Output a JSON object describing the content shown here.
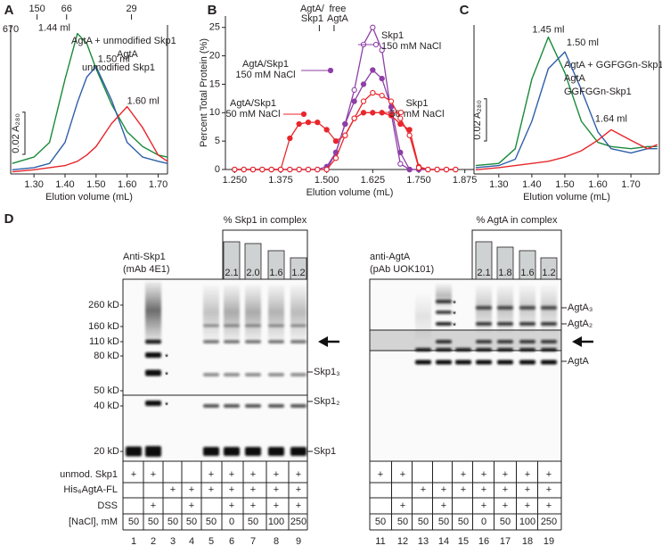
{
  "chart_data": [
    {
      "panel": "A",
      "type": "line",
      "xlabel": "Elution volume (mL)",
      "x": [
        1.23,
        1.3,
        1.35,
        1.4,
        1.44,
        1.47,
        1.5,
        1.55,
        1.6,
        1.65,
        1.7,
        1.73
      ],
      "series": [
        {
          "name": "AgtA + unmodified Skp1",
          "color": "#1a8a3a",
          "peak_label": "1.44 ml",
          "values": [
            0.005,
            0.008,
            0.015,
            0.045,
            0.0667,
            0.062,
            0.05,
            0.033,
            0.02,
            0.013,
            0.009,
            0.008
          ]
        },
        {
          "name": "AgtA",
          "color": "#2f5fa8",
          "peak_label": "1.50 ml",
          "values": [
            0.002,
            0.003,
            0.005,
            0.015,
            0.034,
            0.046,
            0.051,
            0.035,
            0.015,
            0.008,
            0.006,
            0.005
          ]
        },
        {
          "name": "unmodified Skp1",
          "color": "#e8262b",
          "peak_label": "1.60 ml",
          "values": [
            0.001,
            0.002,
            0.003,
            0.004,
            0.006,
            0.009,
            0.013,
            0.024,
            0.032,
            0.022,
            0.009,
            0.006
          ]
        }
      ],
      "xlim": [
        1.225,
        1.73
      ],
      "xticks": [
        {
          "value": 1.3,
          "label": "1.30"
        },
        {
          "value": 1.4,
          "label": "1.40"
        },
        {
          "value": 1.5,
          "label": "1.50"
        },
        {
          "value": 1.6,
          "label": "1.60"
        },
        {
          "value": 1.7,
          "label": "1.70"
        }
      ],
      "ylim": [
        0,
        0.075
      ],
      "scale_bar": {
        "value": 0.02,
        "label": "0.02 A₂₈₀"
      },
      "size_markers": [
        {
          "value": 1.225,
          "label": "670"
        },
        {
          "value": 1.31,
          "label": "150"
        },
        {
          "value": 1.405,
          "label": "66"
        },
        {
          "value": 1.614,
          "label": "29"
        }
      ]
    },
    {
      "panel": "B",
      "type": "line",
      "xlabel": "Elution volume (mL)",
      "ylabel": "Percent Total Protein (%)",
      "x": [
        1.25,
        1.275,
        1.3,
        1.325,
        1.35,
        1.375,
        1.4,
        1.425,
        1.45,
        1.475,
        1.5,
        1.525,
        1.55,
        1.575,
        1.6,
        1.625,
        1.65,
        1.675,
        1.7,
        1.725,
        1.75,
        1.775,
        1.8,
        1.825,
        1.85
      ],
      "series": [
        {
          "name": "Skp1 150 mM NaCl",
          "color": "#8e3fa6",
          "marker": "open",
          "values": [
            0,
            0,
            0,
            0,
            0,
            0,
            0,
            0,
            0,
            0,
            0,
            3,
            8,
            14,
            22,
            25,
            21,
            10,
            1,
            0,
            0,
            0,
            0,
            0,
            0
          ]
        },
        {
          "name": "AgtA/Skp1 150 mM NaCl",
          "color": "#8e3fa6",
          "marker": "filled",
          "values": [
            0,
            0,
            0,
            0,
            0,
            0,
            0,
            0,
            0,
            0,
            0.5,
            3,
            8,
            12,
            15,
            17.5,
            16,
            11,
            3,
            0,
            0,
            0,
            0,
            0,
            0
          ]
        },
        {
          "name": "AgtA/Skp1 50 mM NaCl",
          "color": "#e8262b",
          "marker": "filled",
          "values": [
            0,
            0,
            0,
            0,
            0,
            0,
            5.5,
            8,
            8.3,
            8.3,
            7,
            5,
            6,
            9,
            10,
            10,
            10,
            9.5,
            8,
            7,
            0.5,
            0,
            0,
            0,
            0
          ]
        },
        {
          "name": "Skp1 50 mM NaCl",
          "color": "#e8262b",
          "marker": "open",
          "values": [
            0,
            0,
            0,
            0,
            0,
            0,
            0,
            0,
            0,
            0,
            0,
            2,
            6,
            9,
            12,
            13.5,
            13,
            12,
            9,
            6,
            0.3,
            0,
            0,
            0,
            0
          ]
        }
      ],
      "xlim": [
        1.225,
        1.9
      ],
      "xticks": [
        {
          "value": 1.25,
          "label": "1.250"
        },
        {
          "value": 1.375,
          "label": "1.375"
        },
        {
          "value": 1.5,
          "label": "1.500"
        },
        {
          "value": 1.625,
          "label": "1.625"
        },
        {
          "value": 1.75,
          "label": "1.750"
        },
        {
          "value": 1.875,
          "label": "1.875"
        }
      ],
      "ylim": [
        0,
        27
      ],
      "yticks": [
        0,
        5,
        10,
        15,
        20,
        25
      ],
      "annotations": [
        {
          "value": 1.48,
          "label": "AgtA/ Skp1"
        },
        {
          "value": 1.52,
          "label": "free AgtA"
        }
      ]
    },
    {
      "panel": "C",
      "type": "line",
      "xlabel": "Elution volume (mL)",
      "x": [
        1.23,
        1.3,
        1.35,
        1.4,
        1.45,
        1.5,
        1.55,
        1.6,
        1.64,
        1.7,
        1.75,
        1.78
      ],
      "series": [
        {
          "name": "AgtA + GGFGGn-Skp1",
          "color": "#1a8a3a",
          "peak_label": "1.45 ml",
          "values": [
            0.004,
            0.005,
            0.012,
            0.045,
            0.065,
            0.048,
            0.025,
            0.015,
            0.013,
            0.012,
            0.013,
            0.013
          ]
        },
        {
          "name": "AgtA",
          "color": "#2f5fa8",
          "peak_label": "1.50 ml",
          "values": [
            0.003,
            0.004,
            0.007,
            0.025,
            0.05,
            0.058,
            0.04,
            0.02,
            0.012,
            0.01,
            0.012,
            0.012
          ]
        },
        {
          "name": "GGFGGn-Skp1",
          "color": "#e8262b",
          "peak_label": "1.64 ml",
          "values": [
            0.002,
            0.003,
            0.004,
            0.005,
            0.006,
            0.008,
            0.011,
            0.016,
            0.021,
            0.016,
            0.012,
            0.014
          ]
        }
      ],
      "xlim": [
        1.225,
        1.786
      ],
      "xticks": [
        {
          "value": 1.3,
          "label": "1.30"
        },
        {
          "value": 1.4,
          "label": "1.40"
        },
        {
          "value": 1.5,
          "label": "1.50"
        },
        {
          "value": 1.6,
          "label": "1.60"
        },
        {
          "value": 1.7,
          "label": "1.70"
        }
      ],
      "ylim": [
        0,
        0.075
      ],
      "scale_bar": {
        "value": 0.02,
        "label": "0.02 A₂₈₀"
      }
    }
  ],
  "gel_panel": {
    "panel": "D",
    "row_labels": [
      "unmod. Skp1",
      "His₆AgtA-FL",
      "DSS",
      "[NaCl], mM"
    ],
    "blots": [
      {
        "antibody": "Anti-Skp1",
        "antibody_detail": "(mAb 4E1)",
        "complex_header": "% Skp1 in complex",
        "complex_values": [
          2.1,
          2.0,
          1.6,
          1.2
        ],
        "complex_value_labels": [
          "2.1",
          "2.0",
          "1.6",
          "1.2"
        ],
        "mw_markers": [
          "260 kD",
          "160 kD",
          "110 kD",
          "80 kD",
          "50 kD",
          "40 kD",
          "20 kD"
        ],
        "band_labels": [
          "Skp1₃",
          "Skp1₂",
          "Skp1"
        ],
        "asterisks": [
          "*",
          "*",
          "*"
        ],
        "rows": [
          [
            "+",
            "+",
            null,
            null,
            "+",
            "+",
            "+",
            "+",
            "+"
          ],
          [
            null,
            null,
            "+",
            "+",
            "+",
            "+",
            "+",
            "+",
            "+"
          ],
          [
            null,
            "+",
            null,
            "+",
            null,
            "+",
            "+",
            "+",
            "+"
          ],
          [
            50,
            50,
            50,
            50,
            50,
            0,
            50,
            100,
            250
          ]
        ],
        "lanes": [
          1,
          2,
          3,
          4,
          5,
          6,
          7,
          8,
          9
        ]
      },
      {
        "antibody": "anti-AgtA",
        "antibody_detail": "(pAb UOK101)",
        "complex_header": "% AgtA in complex",
        "complex_values": [
          2.1,
          1.8,
          1.6,
          1.2
        ],
        "complex_value_labels": [
          "2.1",
          "1.8",
          "1.6",
          "1.2"
        ],
        "band_labels": [
          "AgtA₃",
          "AgtA₂",
          "AgtA"
        ],
        "asterisks": [
          "*",
          "*",
          "*"
        ],
        "rows": [
          [
            "+",
            "+",
            null,
            null,
            "+",
            "+",
            "+",
            "+",
            "+"
          ],
          [
            null,
            null,
            "+",
            "+",
            "+",
            "+",
            "+",
            "+",
            "+"
          ],
          [
            null,
            "+",
            null,
            "+",
            null,
            "+",
            "+",
            "+",
            "+"
          ],
          [
            50,
            50,
            50,
            50,
            50,
            0,
            50,
            100,
            250
          ]
        ],
        "lanes": [
          11,
          12,
          13,
          14,
          15,
          16,
          17,
          18,
          19
        ]
      }
    ]
  }
}
